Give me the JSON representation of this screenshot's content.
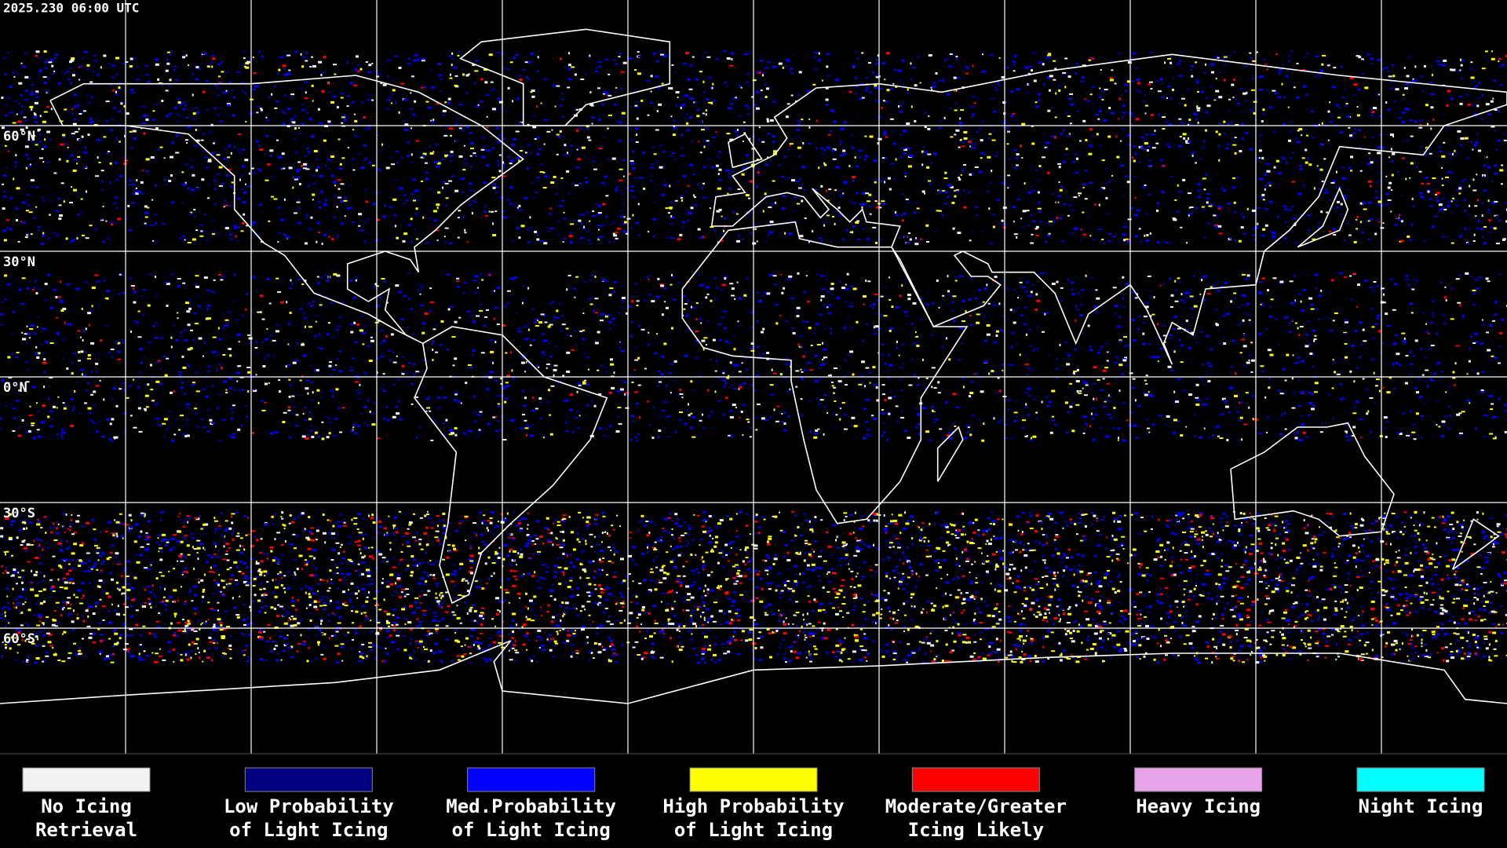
{
  "header": {
    "timestamp": "2025.230 06:00 UTC"
  },
  "map": {
    "latitude_labels": [
      "60°N",
      "30°N",
      "0°N",
      "30°S",
      "60°S"
    ]
  },
  "legend": [
    {
      "label": [
        "No Icing",
        "Retrieval"
      ],
      "color": "#f2f2f2"
    },
    {
      "label": [
        "Low Probability",
        "of Light Icing"
      ],
      "color": "#000080"
    },
    {
      "label": [
        "Med.Probability",
        "of Light Icing"
      ],
      "color": "#0000ff"
    },
    {
      "label": [
        "High Probability",
        "of Light Icing"
      ],
      "color": "#ffff00"
    },
    {
      "label": [
        "Moderate/Greater",
        "Icing Likely"
      ],
      "color": "#ff0000"
    },
    {
      "label": [
        "Heavy Icing"
      ],
      "color": "#e8a4e8"
    },
    {
      "label": [
        "Night Icing"
      ],
      "color": "#00ffff"
    }
  ]
}
